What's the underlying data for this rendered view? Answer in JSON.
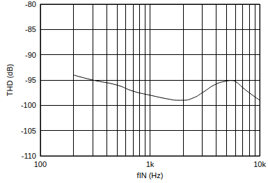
{
  "chart_data": {
    "type": "line",
    "xlabel": "fIN (Hz)",
    "ylabel": "THD (dB)",
    "log": "x",
    "grid": true,
    "color": "#000000",
    "x": [
      200,
      300,
      500,
      700,
      1000,
      1500,
      1800,
      2000,
      2500,
      3000,
      4000,
      5000,
      5500,
      6000,
      7000,
      8000,
      10000
    ],
    "values": [
      -94,
      -95,
      -96,
      -97.2,
      -98,
      -98.8,
      -99,
      -99,
      -98.5,
      -97.5,
      -95.8,
      -95.2,
      -95.1,
      -95.3,
      -96.5,
      -97.5,
      -99
    ],
    "xlim": [
      100,
      10000
    ],
    "xticks": [
      100,
      {
        "value": 1000,
        "label": "1k"
      },
      {
        "value": 10000,
        "label": "10k"
      }
    ],
    "ylim": [
      -110,
      -80
    ],
    "yticks": [
      -110,
      -105,
      -100,
      -95,
      -90,
      -85,
      -80
    ]
  }
}
